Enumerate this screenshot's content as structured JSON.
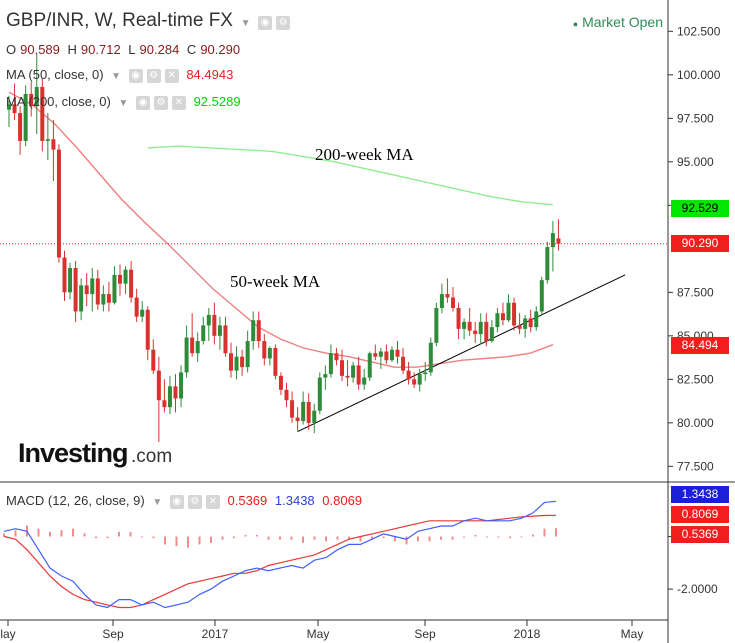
{
  "header": {
    "title": "GBP/INR, W, Real-time FX",
    "market_status": "Market Open",
    "ohlc": {
      "o_label": "O",
      "o": "90.589",
      "h_label": "H",
      "h": "90.712",
      "l_label": "L",
      "l": "90.284",
      "c_label": "C",
      "c": "90.290"
    },
    "ma50": {
      "label": "MA (50, close, 0)",
      "value": "84.4943",
      "color": "#e91e1e"
    },
    "ma200": {
      "label": "MA (200, close, 0)",
      "value": "92.5289",
      "color": "#00e600"
    },
    "macd": {
      "label": "MACD (12, 26, close, 9)",
      "hist": "0.5369",
      "macd": "1.3438",
      "signal": "0.8069"
    }
  },
  "price_tags": {
    "ma200": "92.529",
    "last": "90.290",
    "ma50": "84.494",
    "macd": "1.3438",
    "signal": "0.8069",
    "hist": "0.5369"
  },
  "colors": {
    "up": "#2e8b3a",
    "down": "#d9322e",
    "ma50": "#f08080",
    "ma200": "#90ee90",
    "macd": "#3f5fff",
    "signal": "#e53935",
    "hist": "#f28b8b",
    "trend": "#000000"
  },
  "annotations": {
    "ma200": "200-week MA",
    "ma50": "50-week MA"
  },
  "logo": {
    "text": "Investing",
    "suffix": ".com"
  },
  "chart_data": {
    "type": "candlestick",
    "timeframe": "weekly",
    "y_ticks": [
      "102.500",
      "100.000",
      "97.500",
      "95.000",
      "92.500",
      "87.500",
      "85.000",
      "82.500",
      "80.000",
      "77.500"
    ],
    "ylim": [
      76.6,
      104.3
    ],
    "x_ticks": [
      "lay",
      "Sep",
      "2017",
      "May",
      "Sep",
      "2018",
      "May"
    ],
    "last_price": 90.29,
    "candles": [
      [
        98.0,
        98.8,
        97.0,
        98.3
      ],
      [
        98.3,
        99.5,
        97.4,
        97.8
      ],
      [
        97.8,
        98.2,
        95.4,
        96.2
      ],
      [
        96.2,
        99.4,
        95.9,
        98.9
      ],
      [
        98.9,
        99.6,
        97.6,
        98.2
      ],
      [
        98.2,
        101.2,
        96.6,
        99.3
      ],
      [
        99.3,
        99.8,
        95.6,
        96.2
      ],
      [
        96.2,
        97.8,
        95.1,
        96.3
      ],
      [
        96.3,
        97.4,
        93.9,
        95.7
      ],
      [
        95.7,
        96.0,
        89.2,
        89.5
      ],
      [
        89.5,
        89.9,
        87.0,
        87.5
      ],
      [
        87.5,
        89.2,
        87.1,
        88.9
      ],
      [
        88.9,
        89.3,
        85.8,
        86.4
      ],
      [
        86.4,
        88.3,
        85.9,
        87.9
      ],
      [
        87.9,
        88.6,
        86.7,
        87.4
      ],
      [
        87.4,
        88.9,
        86.4,
        88.3
      ],
      [
        88.3,
        88.8,
        86.5,
        86.8
      ],
      [
        86.8,
        87.9,
        86.4,
        87.4
      ],
      [
        87.4,
        88.1,
        86.4,
        86.9
      ],
      [
        86.9,
        89.0,
        86.8,
        88.5
      ],
      [
        88.5,
        89.1,
        87.3,
        88.0
      ],
      [
        88.0,
        89.0,
        87.4,
        88.8
      ],
      [
        88.8,
        89.3,
        86.9,
        87.2
      ],
      [
        87.2,
        87.7,
        85.8,
        86.1
      ],
      [
        86.1,
        87.0,
        85.8,
        86.5
      ],
      [
        86.5,
        86.7,
        83.6,
        84.2
      ],
      [
        84.2,
        84.8,
        82.8,
        83.0
      ],
      [
        83.0,
        83.8,
        78.9,
        81.3
      ],
      [
        81.3,
        82.5,
        80.6,
        80.9
      ],
      [
        80.9,
        82.7,
        80.5,
        82.1
      ],
      [
        82.1,
        82.8,
        80.6,
        81.4
      ],
      [
        81.4,
        83.3,
        80.9,
        82.9
      ],
      [
        82.9,
        85.6,
        82.6,
        84.9
      ],
      [
        84.9,
        86.3,
        83.8,
        84.0
      ],
      [
        84.0,
        85.2,
        83.5,
        84.7
      ],
      [
        84.7,
        86.1,
        84.5,
        85.6
      ],
      [
        85.6,
        86.6,
        84.7,
        86.2
      ],
      [
        86.2,
        86.9,
        84.5,
        85.0
      ],
      [
        85.0,
        86.1,
        84.2,
        85.6
      ],
      [
        85.6,
        86.1,
        83.8,
        84.0
      ],
      [
        84.0,
        84.6,
        82.6,
        83.0
      ],
      [
        83.0,
        84.4,
        82.5,
        83.8
      ],
      [
        83.8,
        84.2,
        82.7,
        83.2
      ],
      [
        83.2,
        85.3,
        82.9,
        84.7
      ],
      [
        84.7,
        86.4,
        84.2,
        85.9
      ],
      [
        85.9,
        86.4,
        84.3,
        84.7
      ],
      [
        84.7,
        85.1,
        83.3,
        83.7
      ],
      [
        83.7,
        84.4,
        83.3,
        84.3
      ],
      [
        84.3,
        84.5,
        82.5,
        82.7
      ],
      [
        82.7,
        82.9,
        81.6,
        81.9
      ],
      [
        81.9,
        82.3,
        80.9,
        81.3
      ],
      [
        81.3,
        81.8,
        80.0,
        80.3
      ],
      [
        80.3,
        80.9,
        79.5,
        80.1
      ],
      [
        80.1,
        81.8,
        79.9,
        81.2
      ],
      [
        81.2,
        81.7,
        79.6,
        80.0
      ],
      [
        80.0,
        81.1,
        79.4,
        80.7
      ],
      [
        80.7,
        82.9,
        80.5,
        82.6
      ],
      [
        82.6,
        83.3,
        81.9,
        82.8
      ],
      [
        82.8,
        84.5,
        82.6,
        84.0
      ],
      [
        84.0,
        84.3,
        83.3,
        83.6
      ],
      [
        83.6,
        84.2,
        82.4,
        82.7
      ],
      [
        82.7,
        83.6,
        82.1,
        82.6
      ],
      [
        82.6,
        83.5,
        82.3,
        83.3
      ],
      [
        83.3,
        83.8,
        81.9,
        82.2
      ],
      [
        82.2,
        83.1,
        81.9,
        82.6
      ],
      [
        82.6,
        84.1,
        82.4,
        84.0
      ],
      [
        84.0,
        84.5,
        83.6,
        83.8
      ],
      [
        83.8,
        84.3,
        83.1,
        84.1
      ],
      [
        84.1,
        84.5,
        83.4,
        83.6
      ],
      [
        83.6,
        84.4,
        83.5,
        84.2
      ],
      [
        84.2,
        84.7,
        83.4,
        83.8
      ],
      [
        83.8,
        84.3,
        82.8,
        83.0
      ],
      [
        83.0,
        83.5,
        82.2,
        82.5
      ],
      [
        82.5,
        82.9,
        82.0,
        82.2
      ],
      [
        82.2,
        83.1,
        81.8,
        82.8
      ],
      [
        82.8,
        83.5,
        82.4,
        82.9
      ],
      [
        82.9,
        84.9,
        82.7,
        84.6
      ],
      [
        84.6,
        86.9,
        84.4,
        86.6
      ],
      [
        86.6,
        88.0,
        86.3,
        87.4
      ],
      [
        87.4,
        88.3,
        86.9,
        87.2
      ],
      [
        87.2,
        87.8,
        86.4,
        86.6
      ],
      [
        86.6,
        86.9,
        84.8,
        85.4
      ],
      [
        85.4,
        86.0,
        84.8,
        85.8
      ],
      [
        85.8,
        86.6,
        85.0,
        85.3
      ],
      [
        85.3,
        85.8,
        84.6,
        85.1
      ],
      [
        85.1,
        86.3,
        84.5,
        85.8
      ],
      [
        85.8,
        86.3,
        84.4,
        84.7
      ],
      [
        84.7,
        85.9,
        84.6,
        85.5
      ],
      [
        85.5,
        86.6,
        85.2,
        86.3
      ],
      [
        86.3,
        86.9,
        85.6,
        85.9
      ],
      [
        85.9,
        87.4,
        85.8,
        86.9
      ],
      [
        86.9,
        87.2,
        85.3,
        85.6
      ],
      [
        85.6,
        86.3,
        85.1,
        85.4
      ],
      [
        85.4,
        86.2,
        84.9,
        86.0
      ],
      [
        86.0,
        86.5,
        85.2,
        85.5
      ],
      [
        85.5,
        86.7,
        85.3,
        86.4
      ],
      [
        86.4,
        88.4,
        86.2,
        88.2
      ],
      [
        88.2,
        90.4,
        88.0,
        90.1
      ],
      [
        90.1,
        91.6,
        88.7,
        90.9
      ],
      [
        90.6,
        91.7,
        89.9,
        90.29
      ]
    ],
    "series": [
      {
        "name": "MA (200, close, 0)",
        "x_range": [
          25,
          98
        ],
        "values": [
          95.8,
          95.9,
          95.8,
          95.7,
          95.6,
          95.3,
          95.0,
          94.6,
          94.2,
          93.8,
          93.4,
          93.0,
          92.7,
          92.53
        ]
      },
      {
        "name": "MA (50, close, 0)",
        "x_range": [
          0,
          98
        ],
        "values": [
          99.0,
          98.3,
          97.2,
          95.8,
          94.3,
          92.8,
          91.5,
          90.3,
          89.0,
          87.7,
          86.6,
          85.5,
          84.8,
          84.3,
          84.0,
          83.8,
          83.5,
          83.2,
          83.2,
          83.4,
          83.6,
          83.7,
          83.8,
          84.0,
          84.49
        ]
      },
      {
        "name": "MACD",
        "values": [
          0.2,
          0.3,
          0.2,
          -0.5,
          -1.2,
          -1.5,
          -1.7,
          -2.2,
          -2.6,
          -2.7,
          -2.4,
          -2.4,
          -2.6,
          -2.5,
          -2.7,
          -2.6,
          -2.5,
          -2.2,
          -2.0,
          -1.7,
          -1.5,
          -1.3,
          -1.2,
          -1.3,
          -1.2,
          -1.1,
          -1.2,
          -0.9,
          -0.8,
          -0.5,
          -0.3,
          -0.3,
          -0.1,
          0.1,
          0.0,
          -0.1,
          0.2,
          0.3,
          0.4,
          0.4,
          0.6,
          0.7,
          0.6,
          0.6,
          0.6,
          0.7,
          0.9,
          1.3,
          1.34
        ]
      },
      {
        "name": "Signal",
        "values": [
          0.0,
          -0.1,
          -0.5,
          -1.0,
          -1.5,
          -1.9,
          -2.2,
          -2.4,
          -2.5,
          -2.6,
          -2.7,
          -2.7,
          -2.6,
          -2.4,
          -2.2,
          -2.0,
          -1.8,
          -1.7,
          -1.6,
          -1.5,
          -1.4,
          -1.4,
          -1.3,
          -1.1,
          -1.0,
          -0.9,
          -0.8,
          -0.7,
          -0.5,
          -0.3,
          -0.1,
          0.0,
          0.1,
          0.2,
          0.3,
          0.4,
          0.5,
          0.6,
          0.6,
          0.6,
          0.6,
          0.6,
          0.6,
          0.65,
          0.7,
          0.75,
          0.78,
          0.8,
          0.81
        ]
      }
    ],
    "macd_ylim": [
      -3.1,
      2.0
    ],
    "macd_ticks": [
      "0.0000",
      "-2.0000"
    ],
    "trendline": [
      [
        52,
        79.5
      ],
      [
        111,
        88.5
      ]
    ]
  }
}
